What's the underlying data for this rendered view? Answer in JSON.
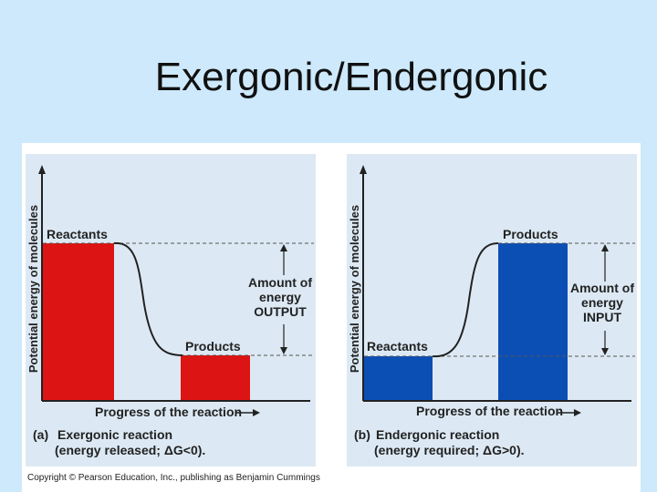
{
  "slide": {
    "title": "Exergonic/Endergonic"
  },
  "panels": {
    "a": {
      "y_axis": "Potential energy of molecules",
      "x_axis": "Progress of the reaction",
      "start_label": "Reactants",
      "end_label": "Products",
      "amount_line1": "Amount of",
      "amount_line2": "energy",
      "amount_line3": "OUTPUT",
      "caption_tag": "(a)",
      "caption_title": "Exergonic reaction",
      "caption_detail": "(energy released; ΔG<0).",
      "bar_color": "#dd1414"
    },
    "b": {
      "y_axis": "Potential energy of molecules",
      "x_axis": "Progress of the reaction",
      "start_label": "Reactants",
      "end_label": "Products",
      "amount_line1": "Amount of",
      "amount_line2": "energy",
      "amount_line3": "INPUT",
      "caption_tag": "(b)",
      "caption_title": "Endergonic reaction",
      "caption_detail": "(energy required; ΔG>0).",
      "bar_color": "#0c4fb4"
    }
  },
  "copyright": "Copyright © Pearson Education, Inc., publishing as Benjamin Cummings"
}
